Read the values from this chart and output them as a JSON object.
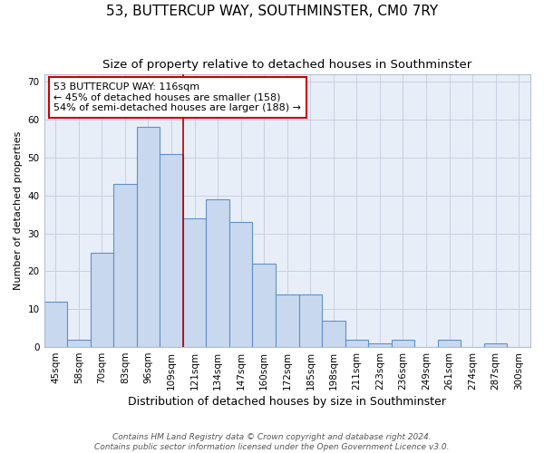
{
  "title": "53, BUTTERCUP WAY, SOUTHMINSTER, CM0 7RY",
  "subtitle": "Size of property relative to detached houses in Southminster",
  "xlabel": "Distribution of detached houses by size in Southminster",
  "ylabel": "Number of detached properties",
  "categories": [
    "45sqm",
    "58sqm",
    "70sqm",
    "83sqm",
    "96sqm",
    "109sqm",
    "121sqm",
    "134sqm",
    "147sqm",
    "160sqm",
    "172sqm",
    "185sqm",
    "198sqm",
    "211sqm",
    "223sqm",
    "236sqm",
    "249sqm",
    "261sqm",
    "274sqm",
    "287sqm",
    "300sqm"
  ],
  "values": [
    12,
    2,
    25,
    43,
    58,
    51,
    34,
    39,
    33,
    22,
    14,
    14,
    7,
    2,
    1,
    2,
    0,
    2,
    0,
    1,
    0
  ],
  "bar_color": "#c8d8ee",
  "bar_edge_color": "#6090c8",
  "grid_color": "#c8d0e0",
  "background_color": "#e8eef8",
  "vline_x_index": 6,
  "vline_color": "#aa0000",
  "annotation_text": "53 BUTTERCUP WAY: 116sqm\n← 45% of detached houses are smaller (158)\n54% of semi-detached houses are larger (188) →",
  "annotation_box_color": "#ffffff",
  "annotation_box_edge": "#cc0000",
  "ylim": [
    0,
    72
  ],
  "yticks": [
    0,
    10,
    20,
    30,
    40,
    50,
    60,
    70
  ],
  "title_fontsize": 11,
  "subtitle_fontsize": 9.5,
  "xlabel_fontsize": 9,
  "ylabel_fontsize": 8,
  "tick_fontsize": 7.5,
  "annotation_fontsize": 8,
  "footer": "Contains HM Land Registry data © Crown copyright and database right 2024.\nContains public sector information licensed under the Open Government Licence v3.0.",
  "footer_fontsize": 6.5
}
